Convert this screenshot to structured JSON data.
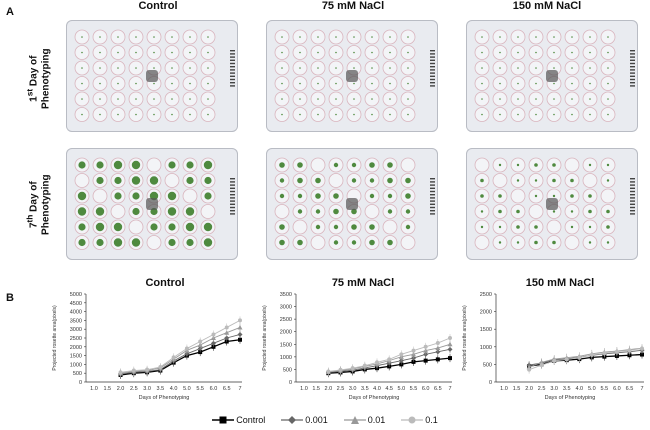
{
  "panel_a": {
    "letter": "A",
    "column_titles": [
      "Control",
      "75 mM NaCl",
      "150 mM NaCl"
    ],
    "row_labels": [
      {
        "prefix": "1",
        "sup": "st",
        "suffix": " Day of",
        "line2": "Phenotyping"
      },
      {
        "prefix": "7",
        "sup": "th",
        "suffix": " Day of",
        "line2": "Phenotyping"
      }
    ],
    "plate_layout": {
      "rows": 6,
      "cols": 8
    },
    "plate_colors": {
      "frame": "#e9ebf0",
      "well_ring": "#d9b5be",
      "seedling": "#4f8a3f",
      "center_mark": "#555555"
    }
  },
  "panel_b": {
    "letter": "B",
    "titles": [
      "Control",
      "75 mM NaCl",
      "150 mM NaCl"
    ],
    "ylabel": "Projected rosette area(pixels)",
    "xlabel": "Days of Phenotyping"
  },
  "legend": {
    "items": [
      {
        "label": "Control",
        "marker": "square",
        "color": "#000000"
      },
      {
        "label": "0.001",
        "marker": "diamond",
        "color": "#666666"
      },
      {
        "label": "0.01",
        "marker": "triangle",
        "color": "#999999"
      },
      {
        "label": "0.1",
        "marker": "circle",
        "color": "#bbbbbb"
      }
    ]
  },
  "chart_data": [
    {
      "type": "line",
      "title": "Control",
      "xlabel": "Days of Phenotyping",
      "ylabel": "Projected rosette area(pixels)",
      "xticks": [
        "1.0",
        "1.5",
        "2.0",
        "2.5",
        "3.0",
        "3.5",
        "4.0",
        "5.0",
        "5.5",
        "6.0",
        "6.5",
        "7"
      ],
      "yticks": [
        0,
        500,
        1000,
        1500,
        2000,
        2500,
        3000,
        3500,
        4000,
        4500,
        5000
      ],
      "ylim": [
        0,
        5000
      ],
      "x": [
        2.0,
        2.5,
        3.0,
        3.5,
        4.0,
        5.0,
        5.5,
        6.0,
        6.5,
        7.0
      ],
      "series": [
        {
          "name": "Control",
          "values": [
            400,
            500,
            550,
            650,
            1100,
            1500,
            1700,
            2000,
            2300,
            2400
          ]
        },
        {
          "name": "0.001",
          "values": [
            450,
            550,
            600,
            700,
            1200,
            1600,
            1900,
            2200,
            2500,
            2700
          ]
        },
        {
          "name": "0.01",
          "values": [
            500,
            600,
            650,
            800,
            1300,
            1800,
            2100,
            2500,
            2800,
            3100
          ]
        },
        {
          "name": "0.1",
          "values": [
            550,
            650,
            700,
            850,
            1400,
            1900,
            2300,
            2700,
            3100,
            3500
          ]
        }
      ]
    },
    {
      "type": "line",
      "title": "75 mM NaCl",
      "xlabel": "Days of Phenotyping",
      "ylabel": "Projected rosette area(pixels)",
      "xticks": [
        "1.0",
        "1.5",
        "2.0",
        "2.5",
        "3.0",
        "3.5",
        "4.0",
        "4.5",
        "5.0",
        "5.5",
        "6.0",
        "6.5",
        "7"
      ],
      "yticks": [
        0,
        500,
        1000,
        1500,
        2000,
        2500,
        3000,
        3500
      ],
      "ylim": [
        0,
        3500
      ],
      "x": [
        2.0,
        2.5,
        3.0,
        3.5,
        4.0,
        4.5,
        5.0,
        5.5,
        6.0,
        6.5,
        7.0
      ],
      "series": [
        {
          "name": "Control",
          "values": [
            350,
            380,
            420,
            500,
            550,
            620,
            700,
            800,
            850,
            900,
            950
          ]
        },
        {
          "name": "0.001",
          "values": [
            380,
            420,
            470,
            560,
            650,
            750,
            850,
            950,
            1100,
            1200,
            1300
          ]
        },
        {
          "name": "0.01",
          "values": [
            400,
            450,
            520,
            620,
            720,
            850,
            1000,
            1100,
            1250,
            1350,
            1500
          ]
        },
        {
          "name": "0.1",
          "values": [
            420,
            480,
            550,
            650,
            780,
            900,
            1100,
            1250,
            1400,
            1550,
            1750
          ]
        }
      ]
    },
    {
      "type": "line",
      "title": "150 mM NaCl",
      "xlabel": "Days of Phenotyping",
      "ylabel": "Projected rosette area(pixels)",
      "xticks": [
        "1.0",
        "1.5",
        "2.0",
        "2.5",
        "3.0",
        "3.5",
        "4.0",
        "5.0",
        "5.5",
        "6.0",
        "6.5",
        "7"
      ],
      "yticks": [
        0,
        500,
        1000,
        1500,
        2000,
        2500
      ],
      "ylim": [
        0,
        2500
      ],
      "x": [
        2.0,
        2.5,
        3.0,
        3.5,
        4.0,
        5.0,
        5.5,
        6.0,
        6.5,
        7.0
      ],
      "series": [
        {
          "name": "Control",
          "values": [
            450,
            500,
            600,
            620,
            650,
            700,
            720,
            740,
            760,
            780
          ]
        },
        {
          "name": "0.001",
          "values": [
            480,
            540,
            630,
            660,
            700,
            760,
            800,
            830,
            860,
            900
          ]
        },
        {
          "name": "0.01",
          "values": [
            420,
            560,
            650,
            690,
            730,
            800,
            850,
            880,
            920,
            960
          ]
        },
        {
          "name": "0.1",
          "values": [
            350,
            480,
            600,
            640,
            690,
            770,
            820,
            860,
            900,
            950
          ]
        }
      ]
    }
  ]
}
